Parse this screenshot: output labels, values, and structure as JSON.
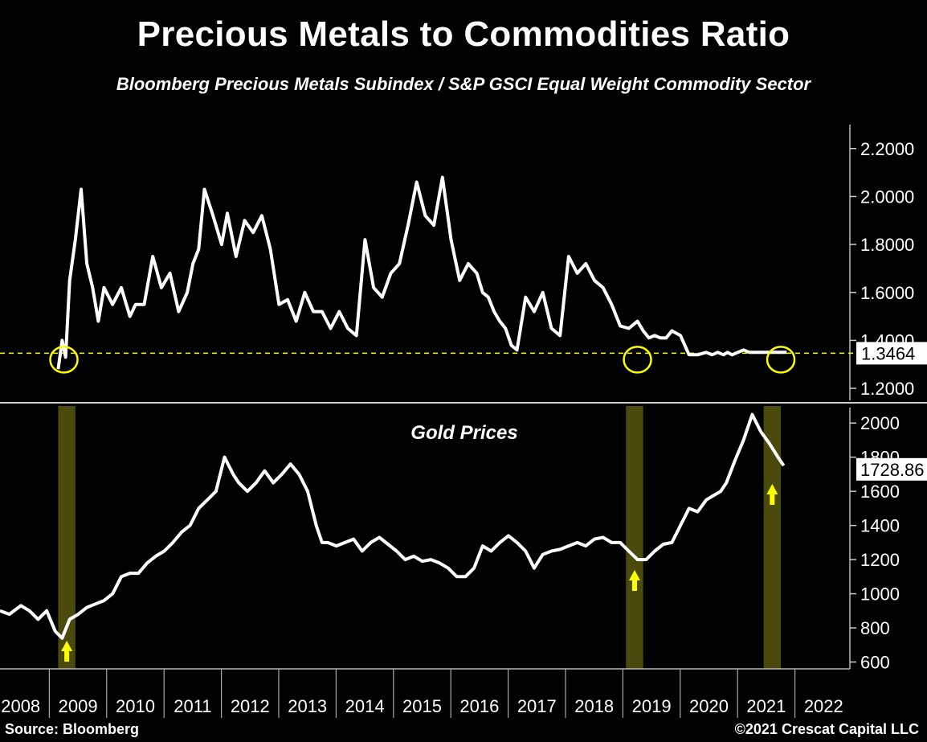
{
  "header": {
    "title": "Precious Metals to Commodities Ratio",
    "subtitle": "Bloomberg Precious Metals Subindex / S&P GSCI Equal Weight Commodity Sector"
  },
  "footer": {
    "source": "Source: Bloomberg",
    "copyright": "©2021 Crescat Capital LLC"
  },
  "colors": {
    "background": "#000000",
    "line": "#ffffff",
    "reference_line": "#ffff00",
    "highlight_circle": "#ffff00",
    "arrow": "#ffff00",
    "shade": "#4a4a0c",
    "gold_highlight": "#ffffa0"
  },
  "chart_data": [
    {
      "type": "line",
      "title": "",
      "x_axis": {
        "tick_labels": [
          "2008",
          "2009",
          "2010",
          "2011",
          "2012",
          "2013",
          "2014",
          "2015",
          "2016",
          "2017",
          "2018",
          "2019",
          "2020",
          "2021",
          "2022"
        ]
      },
      "ylim": [
        1.15,
        2.35
      ],
      "y_ticks": [
        "1.2000",
        "1.4000",
        "1.6000",
        "1.8000",
        "2.0000",
        "2.2000"
      ],
      "last_value_label": "1.3464",
      "reference_line": {
        "value": 1.3464,
        "style": "dashed"
      },
      "highlight_circles_at": [
        2008.75,
        2018.75,
        2021.25
      ],
      "series": [
        {
          "x": [
            2008.65,
            2008.72,
            2008.78,
            2008.85,
            2008.95,
            2009.05,
            2009.15,
            2009.25,
            2009.35,
            2009.45,
            2009.6,
            2009.75,
            2009.9,
            2010.0,
            2010.15,
            2010.3,
            2010.45,
            2010.6,
            2010.75,
            2010.9,
            2011.0,
            2011.1,
            2011.2,
            2011.35,
            2011.5,
            2011.6,
            2011.75,
            2011.9,
            2012.05,
            2012.2,
            2012.35,
            2012.5,
            2012.65,
            2012.8,
            2012.95,
            2013.1,
            2013.25,
            2013.4,
            2013.55,
            2013.7,
            2013.85,
            2014.0,
            2014.15,
            2014.3,
            2014.45,
            2014.6,
            2014.75,
            2014.9,
            2015.05,
            2015.2,
            2015.35,
            2015.5,
            2015.65,
            2015.8,
            2015.95,
            2016.05,
            2016.15,
            2016.25,
            2016.35,
            2016.45,
            2016.55,
            2016.65,
            2016.8,
            2016.95,
            2017.1,
            2017.25,
            2017.4,
            2017.55,
            2017.7,
            2017.85,
            2018.0,
            2018.15,
            2018.3,
            2018.45,
            2018.6,
            2018.75,
            2018.85,
            2018.95,
            2019.05,
            2019.15,
            2019.25,
            2019.35,
            2019.5,
            2019.65,
            2019.8,
            2019.95,
            2020.05,
            2020.15,
            2020.25,
            2020.32,
            2020.4,
            2020.5,
            2020.6,
            2020.7,
            2020.8,
            2020.9,
            2021.0,
            2021.1,
            2021.2,
            2021.3,
            2021.35
          ],
          "y": [
            1.28,
            1.4,
            1.33,
            1.65,
            1.82,
            2.03,
            1.72,
            1.62,
            1.48,
            1.62,
            1.55,
            1.62,
            1.5,
            1.55,
            1.55,
            1.75,
            1.62,
            1.68,
            1.52,
            1.6,
            1.72,
            1.78,
            2.03,
            1.92,
            1.8,
            1.93,
            1.75,
            1.9,
            1.85,
            1.92,
            1.78,
            1.55,
            1.57,
            1.48,
            1.6,
            1.52,
            1.52,
            1.45,
            1.52,
            1.45,
            1.42,
            1.82,
            1.62,
            1.58,
            1.68,
            1.72,
            1.88,
            2.06,
            1.92,
            1.88,
            2.08,
            1.82,
            1.65,
            1.72,
            1.68,
            1.6,
            1.58,
            1.52,
            1.48,
            1.45,
            1.38,
            1.36,
            1.58,
            1.52,
            1.6,
            1.45,
            1.42,
            1.75,
            1.68,
            1.72,
            1.65,
            1.62,
            1.55,
            1.46,
            1.45,
            1.48,
            1.44,
            1.41,
            1.42,
            1.41,
            1.41,
            1.44,
            1.42,
            1.34,
            1.34,
            1.35,
            1.34,
            1.35,
            1.34,
            1.35,
            1.34,
            1.35,
            1.36,
            1.35,
            1.35,
            1.35,
            1.35,
            1.35,
            1.35,
            1.35,
            1.35
          ]
        }
      ]
    },
    {
      "type": "line",
      "title": "Gold Prices",
      "ylim": [
        560,
        2100
      ],
      "y_ticks": [
        "600",
        "800",
        "1000",
        "1200",
        "1400",
        "1600",
        "1800",
        "2000"
      ],
      "last_value_label": "1728.86",
      "shaded_periods": [
        [
          2008.65,
          2008.95
        ],
        [
          2018.55,
          2018.85
        ],
        [
          2020.95,
          2021.25
        ]
      ],
      "arrows_at": [
        2008.8,
        2018.7,
        2021.1
      ],
      "series": [
        {
          "x": [
            2007.6,
            2007.8,
            2008.0,
            2008.15,
            2008.3,
            2008.45,
            2008.6,
            2008.72,
            2008.85,
            2009.0,
            2009.15,
            2009.3,
            2009.45,
            2009.6,
            2009.75,
            2009.9,
            2010.05,
            2010.2,
            2010.35,
            2010.5,
            2010.65,
            2010.8,
            2010.95,
            2011.1,
            2011.25,
            2011.4,
            2011.55,
            2011.7,
            2011.8,
            2011.95,
            2012.1,
            2012.25,
            2012.4,
            2012.55,
            2012.7,
            2012.85,
            2013.0,
            2013.15,
            2013.25,
            2013.35,
            2013.5,
            2013.65,
            2013.8,
            2013.95,
            2014.1,
            2014.25,
            2014.4,
            2014.55,
            2014.7,
            2014.85,
            2015.0,
            2015.15,
            2015.3,
            2015.45,
            2015.6,
            2015.75,
            2015.9,
            2016.05,
            2016.2,
            2016.35,
            2016.5,
            2016.65,
            2016.8,
            2016.95,
            2017.1,
            2017.25,
            2017.4,
            2017.55,
            2017.7,
            2017.85,
            2018.0,
            2018.15,
            2018.3,
            2018.45,
            2018.6,
            2018.75,
            2018.9,
            2019.05,
            2019.2,
            2019.35,
            2019.5,
            2019.65,
            2019.8,
            2019.95,
            2020.1,
            2020.2,
            2020.3,
            2020.45,
            2020.6,
            2020.75,
            2020.9,
            2021.05,
            2021.2,
            2021.3
          ],
          "y": [
            900,
            880,
            930,
            900,
            850,
            900,
            780,
            740,
            850,
            880,
            920,
            940,
            960,
            1000,
            1100,
            1120,
            1120,
            1180,
            1220,
            1250,
            1300,
            1360,
            1400,
            1500,
            1550,
            1600,
            1800,
            1700,
            1650,
            1600,
            1650,
            1720,
            1650,
            1700,
            1760,
            1700,
            1600,
            1400,
            1300,
            1300,
            1280,
            1300,
            1320,
            1250,
            1300,
            1330,
            1290,
            1250,
            1200,
            1220,
            1190,
            1200,
            1180,
            1150,
            1100,
            1100,
            1150,
            1280,
            1250,
            1300,
            1340,
            1300,
            1250,
            1150,
            1230,
            1250,
            1260,
            1280,
            1300,
            1280,
            1320,
            1330,
            1300,
            1300,
            1250,
            1200,
            1200,
            1250,
            1290,
            1300,
            1400,
            1500,
            1480,
            1550,
            1580,
            1600,
            1650,
            1780,
            1900,
            2050,
            1950,
            1880,
            1800,
            1750
          ]
        }
      ]
    }
  ]
}
